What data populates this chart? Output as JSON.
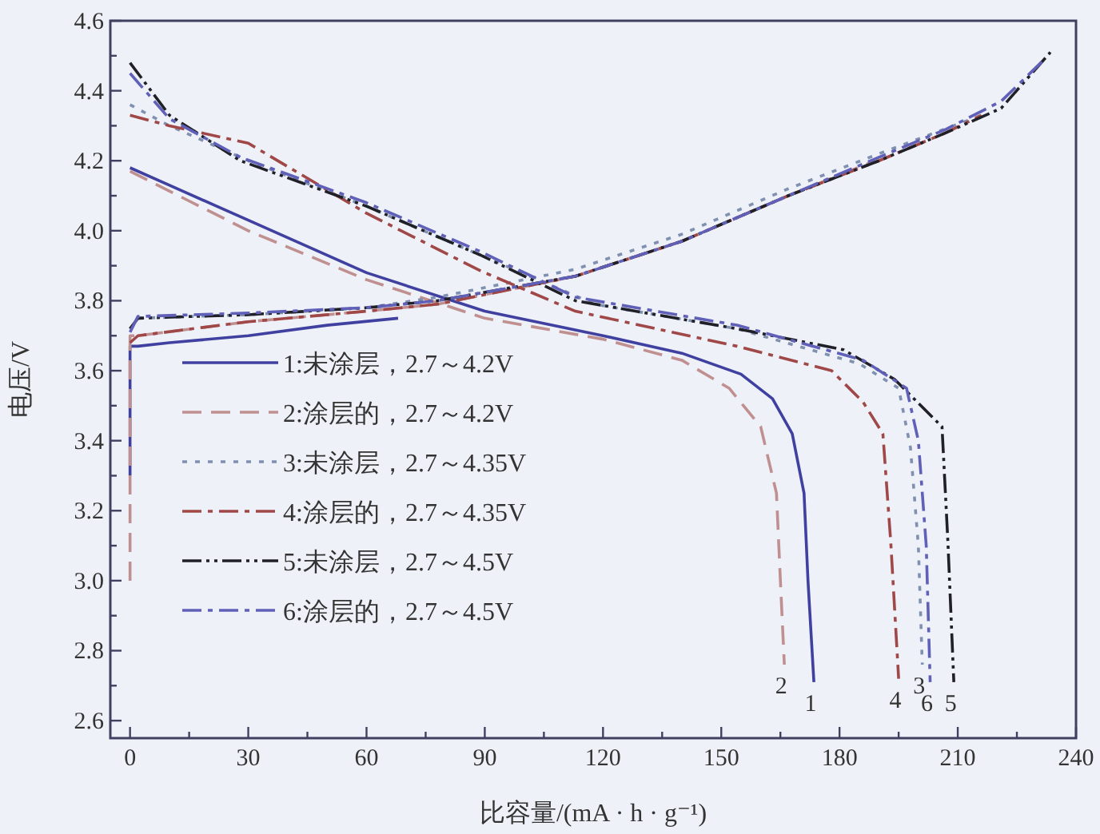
{
  "chart_data": {
    "type": "line",
    "xlabel": "比容量/(mA · h · g⁻¹)",
    "ylabel": "电压/V",
    "xlim": [
      -5,
      240
    ],
    "ylim": [
      2.55,
      4.6
    ],
    "xticks": [
      0,
      {
        "value": 15,
        "label": null
      },
      30,
      {
        "value": 45,
        "label": null
      },
      60,
      {
        "value": 75,
        "label": null
      },
      90,
      {
        "value": 105,
        "label": null
      },
      120,
      {
        "value": 135,
        "label": null
      },
      150,
      {
        "value": 165,
        "label": null
      },
      180,
      {
        "value": 195,
        "label": null
      },
      210,
      {
        "value": 225,
        "label": null
      },
      240
    ],
    "yticks": [
      2.6,
      {
        "value": 2.7,
        "label": null
      },
      2.8,
      {
        "value": 2.9,
        "label": null
      },
      {
        "value": 3.0,
        "label": "3.0"
      },
      {
        "value": 3.1,
        "label": null
      },
      3.2,
      {
        "value": 3.3,
        "label": null
      },
      3.4,
      {
        "value": 3.5,
        "label": null
      },
      3.6,
      {
        "value": 3.7,
        "label": null
      },
      3.8,
      {
        "value": 3.9,
        "label": null
      },
      {
        "value": 4.0,
        "label": "4.0"
      },
      {
        "value": 4.1,
        "label": null
      },
      4.2,
      {
        "value": 4.3,
        "label": null
      },
      4.4,
      {
        "value": 4.5,
        "label": null
      },
      4.6
    ],
    "grid": false,
    "legend": "left",
    "series": [
      {
        "name": "1:未涂层，2.7～4.2V",
        "color": "#4040a0",
        "line_style": "solid",
        "x": [
          0,
          0,
          2,
          10,
          30,
          50,
          68,
          null,
          0,
          10,
          30,
          60,
          90,
          120,
          140,
          155,
          163,
          168,
          171,
          172,
          173.5
        ],
        "values": [
          3.3,
          3.67,
          3.67,
          3.68,
          3.7,
          3.73,
          3.75,
          null,
          4.18,
          4.13,
          4.03,
          3.88,
          3.77,
          3.7,
          3.65,
          3.59,
          3.52,
          3.42,
          3.25,
          3.0,
          2.71
        ]
      },
      {
        "name": "2:涂层的，2.7～4.2V",
        "color": "#c09090",
        "line_style": "dashed",
        "x": [
          0,
          0,
          2,
          30,
          60,
          78,
          113,
          140,
          167,
          189,
          null,
          0,
          30,
          60,
          90,
          120,
          140,
          152,
          160,
          164,
          165,
          166
        ],
        "values": [
          3.0,
          3.7,
          3.7,
          3.74,
          3.77,
          3.79,
          3.87,
          3.97,
          4.1,
          4.2,
          null,
          4.17,
          4.0,
          3.86,
          3.75,
          3.69,
          3.63,
          3.55,
          3.44,
          3.25,
          3.0,
          2.76
        ]
      },
      {
        "name": "3:未涂层，2.7～4.35V",
        "color": "#8090b0",
        "line_style": "dotted",
        "x": [
          0,
          2,
          30,
          60,
          78,
          113,
          140,
          167,
          190,
          216,
          null,
          0,
          10,
          30,
          60,
          89,
          118,
          154,
          185,
          195,
          198,
          200,
          201
        ],
        "values": [
          3.72,
          3.75,
          3.76,
          3.78,
          3.81,
          3.89,
          3.99,
          4.12,
          4.22,
          4.33,
          null,
          4.36,
          4.3,
          4.2,
          4.07,
          3.93,
          3.79,
          3.72,
          3.62,
          3.55,
          3.38,
          3.1,
          2.76
        ]
      },
      {
        "name": "4:涂层的，2.7～4.35V",
        "color": "#a04848",
        "line_style": "dashdot",
        "x": [
          0,
          2,
          30,
          60,
          78,
          113,
          140,
          167,
          190,
          207,
          216,
          null,
          0,
          10,
          30,
          60,
          89,
          113,
          154,
          178,
          186,
          191,
          193,
          195
        ],
        "values": [
          3.68,
          3.7,
          3.74,
          3.77,
          3.79,
          3.87,
          3.97,
          4.1,
          4.2,
          4.28,
          4.33,
          null,
          4.33,
          4.3,
          4.25,
          4.05,
          3.885,
          3.77,
          3.67,
          3.6,
          3.51,
          3.42,
          3.11,
          2.72
        ]
      },
      {
        "name": "5:未涂层，2.7～4.5V",
        "color": "#202028",
        "line_style": "dashdotdot",
        "x": [
          0,
          2,
          30,
          60,
          78,
          113,
          140,
          167,
          190,
          207,
          221,
          233.5,
          null,
          0,
          10,
          28,
          60,
          89,
          113,
          154,
          181,
          194,
          206,
          207.5,
          209
        ],
        "values": [
          3.72,
          3.75,
          3.76,
          3.78,
          3.8,
          3.87,
          3.97,
          4.1,
          4.2,
          4.28,
          4.35,
          4.51,
          null,
          4.48,
          4.33,
          4.2,
          4.07,
          3.93,
          3.8,
          3.72,
          3.66,
          3.575,
          3.44,
          3.11,
          2.71
        ]
      },
      {
        "name": "6:涂层的，2.7～4.5V",
        "color": "#6060b8",
        "line_style": "dashdot",
        "x": [
          0,
          2,
          30,
          60,
          78,
          113,
          140,
          167,
          190,
          207,
          221,
          232,
          null,
          0,
          10,
          28,
          60,
          89,
          113,
          154,
          186,
          197,
          200,
          202,
          203
        ],
        "values": [
          3.71,
          3.755,
          3.765,
          3.78,
          3.8,
          3.87,
          3.97,
          4.1,
          4.21,
          4.29,
          4.37,
          4.49,
          null,
          4.45,
          4.32,
          4.21,
          4.08,
          3.94,
          3.81,
          3.73,
          3.63,
          3.55,
          3.4,
          3.1,
          2.71
        ]
      }
    ],
    "annotations": [
      {
        "text": "2",
        "x": 166,
        "y": 2.76
      },
      {
        "text": "1",
        "x": 173.5,
        "y": 2.71
      },
      {
        "text": "4",
        "x": 195,
        "y": 2.72
      },
      {
        "text": "3",
        "x": 201,
        "y": 2.76
      },
      {
        "text": "6",
        "x": 203,
        "y": 2.71
      },
      {
        "text": "5",
        "x": 209,
        "y": 2.71
      }
    ]
  }
}
